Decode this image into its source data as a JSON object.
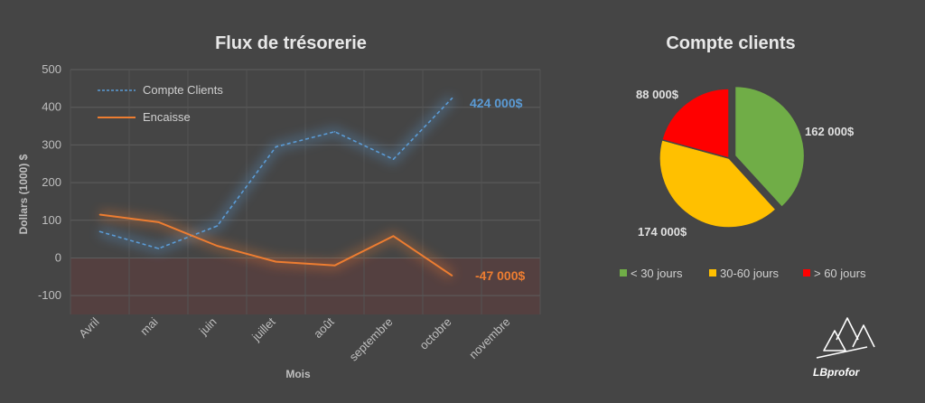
{
  "colors": {
    "background": "#454545",
    "compte_clients": "#5b9bd5",
    "encaisse": "#ed7d31",
    "lt30": "#70ad47",
    "d30_60": "#ffc000",
    "gt60": "#ff0000",
    "negative_zone": "#5a3f3f"
  },
  "brand": {
    "text": "LBprofor"
  },
  "chart_data": [
    {
      "type": "line",
      "title": "Flux de trésorerie",
      "xlabel": "Mois",
      "ylabel": "Dollars (1000) $",
      "categories": [
        "Avril",
        "mai",
        "juin",
        "juillet",
        "août",
        "septembre",
        "octobre",
        "novembre"
      ],
      "ylim": [
        -150,
        500
      ],
      "yticks": [
        500,
        400,
        300,
        200,
        100,
        0,
        -100
      ],
      "grid": true,
      "legend_placement": "top-left",
      "series": [
        {
          "name": "Compte Clients",
          "style": "dashed",
          "values": [
            70,
            25,
            85,
            295,
            335,
            262,
            424,
            null
          ],
          "end_label": "424 000$"
        },
        {
          "name": "Encaisse",
          "style": "solid",
          "values": [
            115,
            95,
            32,
            -10,
            -20,
            58,
            -47,
            null
          ],
          "end_label": "-47 000$"
        }
      ]
    },
    {
      "type": "pie",
      "title": "Compte clients",
      "legend_placement": "bottom",
      "slices": [
        {
          "name": "< 30 jours",
          "value": 162000,
          "label": "162 000$",
          "color_key": "lt30"
        },
        {
          "name": "30-60 jours",
          "value": 174000,
          "label": "174 000$",
          "color_key": "d30_60"
        },
        {
          "name": "> 60 jours",
          "value": 88000,
          "label": "88 000$",
          "color_key": "gt60"
        }
      ]
    }
  ]
}
